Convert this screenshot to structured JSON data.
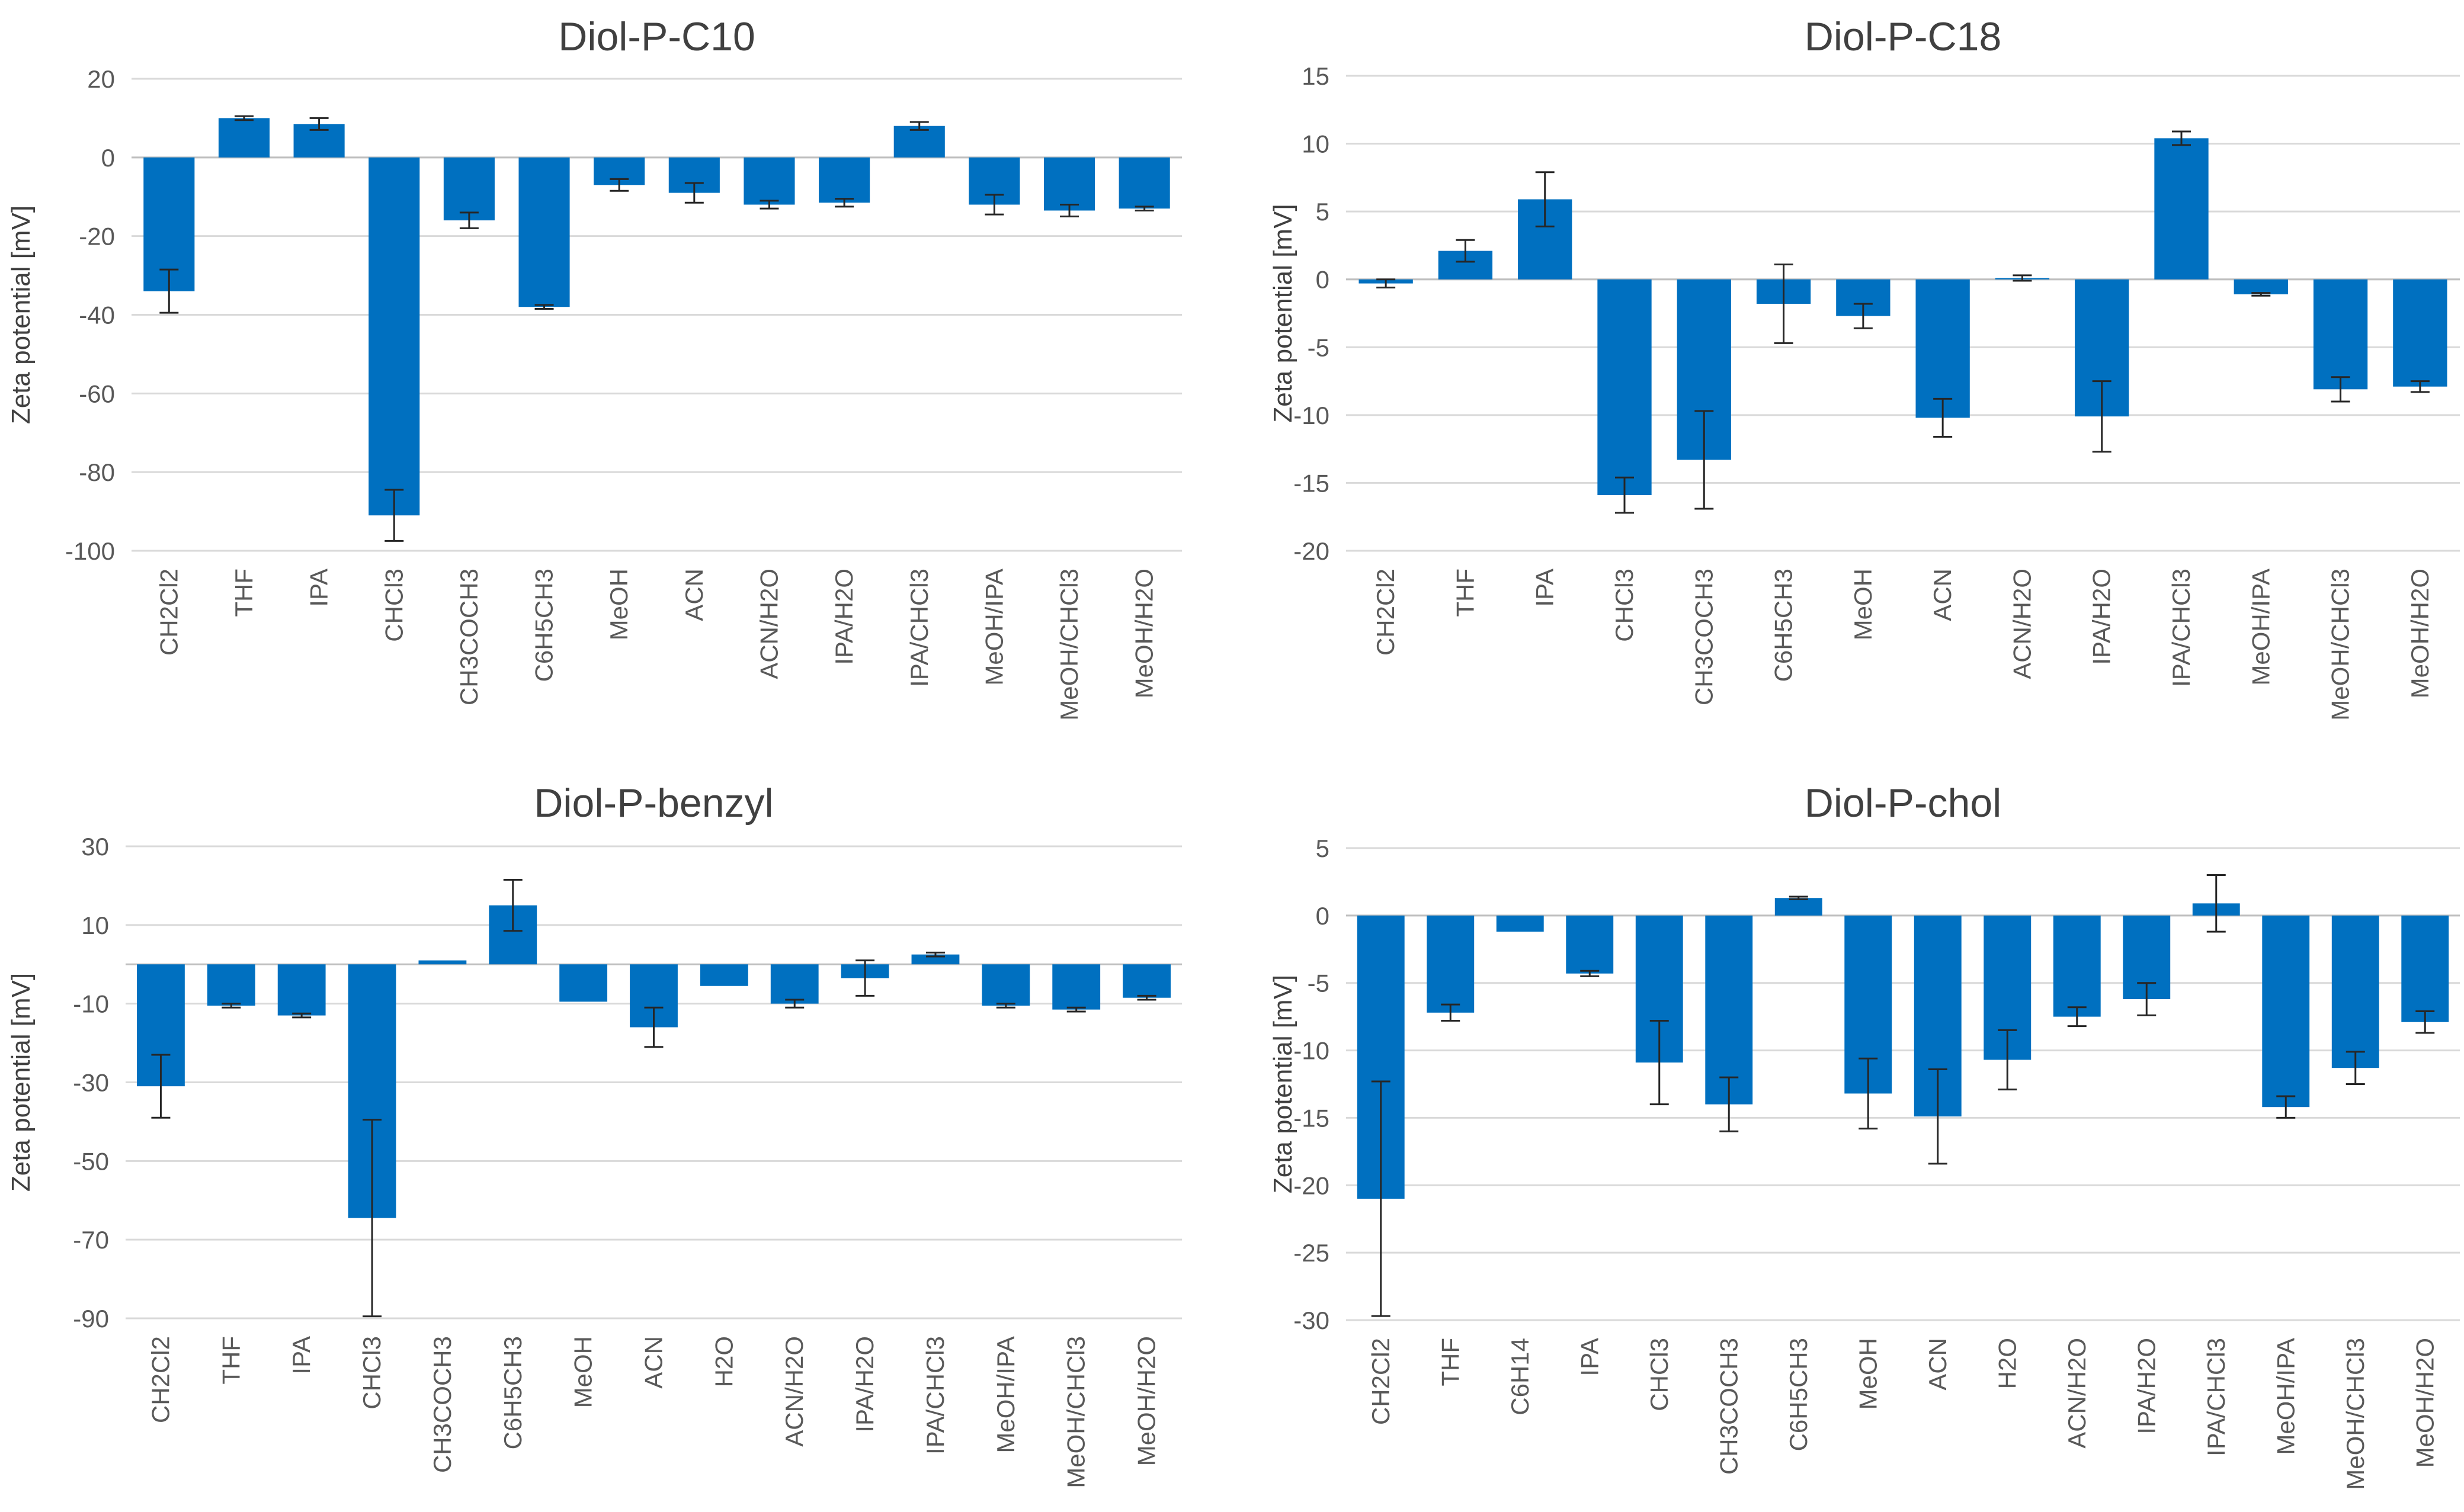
{
  "chart_data": [
    {
      "type": "bar",
      "title": "Diol-P-C10",
      "xlabel": "",
      "ylabel": "Zeta potential [mV]",
      "ylim": [
        -100,
        20
      ],
      "yticks": [
        20,
        0,
        -20,
        -40,
        -60,
        -80,
        -100
      ],
      "grid": true,
      "legend": "none",
      "bar_color": "#0070C0",
      "categories": [
        "CH2Cl2",
        "THF",
        "IPA",
        "CHCl3",
        "CH3COCH3",
        "C6H5CH3",
        "MeOH",
        "ACN",
        "ACN/H2O",
        "IPA/H2O",
        "IPA/CHCl3",
        "MeOH/IPA",
        "MeOH/CHCl3",
        "MeOH/H2O"
      ],
      "values": [
        -34,
        10,
        8.5,
        -91,
        -16,
        -38,
        -7,
        -9,
        -12,
        -11.5,
        8,
        -12,
        -13.5,
        -13
      ],
      "errors": [
        5.5,
        0.5,
        1.5,
        6.5,
        2,
        0.5,
        1.5,
        2.5,
        1,
        1,
        1,
        2.5,
        1.5,
        0.5
      ]
    },
    {
      "type": "bar",
      "title": "Diol-P-C18",
      "xlabel": "",
      "ylabel": "Zeta potential [mV]",
      "ylim": [
        -20,
        15
      ],
      "yticks": [
        15,
        10,
        5,
        0,
        -5,
        -10,
        -15,
        -20
      ],
      "grid": true,
      "legend": "none",
      "bar_color": "#0070C0",
      "categories": [
        "CH2Cl2",
        "THF",
        "IPA",
        "CHCl3",
        "CH3COCH3",
        "C6H5CH3",
        "MeOH",
        "ACN",
        "ACN/H2O",
        "IPA/H2O",
        "IPA/CHCl3",
        "MeOH/IPA",
        "MeOH/CHCl3",
        "MeOH/H2O"
      ],
      "values": [
        -0.3,
        2.1,
        5.9,
        -15.9,
        -13.3,
        -1.8,
        -2.7,
        -10.2,
        0.1,
        -10.1,
        10.4,
        -1.1,
        -8.1,
        -7.9
      ],
      "errors": [
        0.3,
        0.8,
        2.0,
        1.3,
        3.6,
        2.9,
        0.9,
        1.4,
        0.2,
        2.6,
        0.5,
        0.1,
        0.9,
        0.4
      ]
    },
    {
      "type": "bar",
      "title": "Diol-P-benzyl",
      "xlabel": "",
      "ylabel": "Zeta potential [mV]",
      "ylim": [
        -90,
        30
      ],
      "yticks": [
        30,
        10,
        -10,
        -30,
        -50,
        -70,
        -90
      ],
      "grid": true,
      "legend": "none",
      "bar_color": "#0070C0",
      "categories": [
        "CH2Cl2",
        "THF",
        "IPA",
        "CHCl3",
        "CH3COCH3",
        "C6H5CH3",
        "MeOH",
        "ACN",
        "H2O",
        "ACN/H2O",
        "IPA/H2O",
        "IPA/CHCl3",
        "MeOH/IPA",
        "MeOH/CHCl3",
        "MeOH/H2O"
      ],
      "values": [
        -31,
        -10.5,
        -13,
        -64.5,
        1,
        15,
        -9.5,
        -16,
        -5.5,
        -10,
        -3.5,
        2.5,
        -10.5,
        -11.5,
        -8.5
      ],
      "errors": [
        8,
        0.5,
        0.5,
        25,
        0,
        6.5,
        0,
        5,
        0,
        1,
        4.5,
        0.5,
        0.5,
        0.5,
        0.5
      ]
    },
    {
      "type": "bar",
      "title": "Diol-P-chol",
      "xlabel": "",
      "ylabel": "Zeta potential [mV]",
      "ylim": [
        -30,
        5
      ],
      "yticks": [
        5,
        0,
        -5,
        -10,
        -15,
        -20,
        -25,
        -30
      ],
      "grid": true,
      "legend": "none",
      "bar_color": "#0070C0",
      "categories": [
        "CH2Cl2",
        "THF",
        "C6H14",
        "IPA",
        "CHCl3",
        "CH3COCH3",
        "C6H5CH3",
        "MeOH",
        "ACN",
        "H2O",
        "ACN/H2O",
        "IPA/H2O",
        "IPA/CHCl3",
        "MeOH/IPA",
        "MeOH/CHCl3",
        "MeOH/H2O"
      ],
      "values": [
        -21,
        -7.2,
        -1.2,
        -4.3,
        -10.9,
        -14,
        1.3,
        -13.2,
        -14.9,
        -10.7,
        -7.5,
        -6.2,
        0.9,
        -14.2,
        -11.3,
        -7.9
      ],
      "errors": [
        8.7,
        0.6,
        0,
        0.2,
        3.1,
        2.0,
        0.1,
        2.6,
        3.5,
        2.2,
        0.7,
        1.2,
        2.1,
        0.8,
        1.2,
        0.8
      ]
    }
  ]
}
